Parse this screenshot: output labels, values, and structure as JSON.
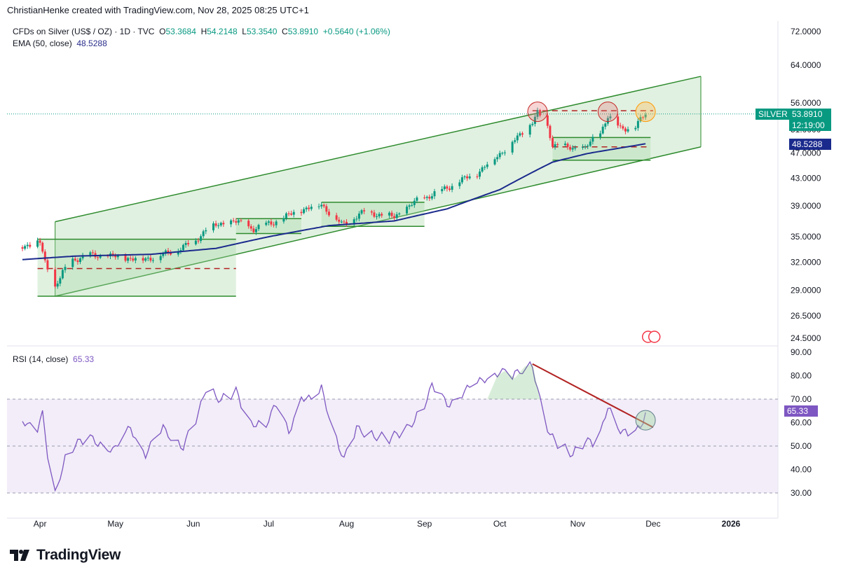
{
  "header": {
    "attribution": "ChristianHenke created with TradingView.com, Nov 28, 2025 08:25 UTC+1"
  },
  "legend": {
    "symbol": "CFDs on Silver (US$ / OZ) · 1D · TVC",
    "open_label": "O",
    "open": "53.3684",
    "high_label": "H",
    "high": "54.2148",
    "low_label": "L",
    "low": "53.3540",
    "close_label": "C",
    "close": "53.8910",
    "change": "+0.5640 (+1.06%)",
    "ema_label": "EMA (50, close)",
    "ema_value": "48.5288",
    "rsi_label": "RSI (14, close)",
    "rsi_value": "65.33"
  },
  "price_tags": {
    "symbol_tag": "SILVER",
    "last_price": "53.8910",
    "countdown": "12:19:00",
    "ema_price": "48.5288",
    "rsi_value": "65.33"
  },
  "colors": {
    "up": "#089981",
    "down": "#f23645",
    "ema": "#1a2a8c",
    "rsi": "#7e57c2",
    "channel": "#2e8b2e",
    "channel_fill": "#c8e6c9",
    "resistance": "#b22222"
  },
  "footer": {
    "brand": "TradingView"
  },
  "chart_data": [
    {
      "type": "candlestick",
      "symbol": "SILVER",
      "y_scale": "log",
      "ylim": [
        24.5,
        72
      ],
      "y_ticks": [
        "72.0000",
        "64.0000",
        "56.0000",
        "51.0000",
        "47.0000",
        "43.0000",
        "39.0000",
        "35.0000",
        "32.0000",
        "29.0000",
        "26.5000",
        "24.5000"
      ],
      "x_ticks": [
        "Apr",
        "May",
        "Jun",
        "Jul",
        "Aug",
        "Sep",
        "Oct",
        "Nov",
        "Dec",
        "2026"
      ],
      "approx_close_path": [
        [
          "2025-03-25",
          33.9
        ],
        [
          "2025-04-01",
          34.3
        ],
        [
          "2025-04-03",
          32.0
        ],
        [
          "2025-04-07",
          29.3
        ],
        [
          "2025-04-10",
          30.8
        ],
        [
          "2025-04-14",
          32.3
        ],
        [
          "2025-04-21",
          32.8
        ],
        [
          "2025-05-01",
          32.6
        ],
        [
          "2025-05-12",
          32.3
        ],
        [
          "2025-05-22",
          33.0
        ],
        [
          "2025-06-02",
          34.5
        ],
        [
          "2025-06-06",
          36.0
        ],
        [
          "2025-06-17",
          37.0
        ],
        [
          "2025-06-25",
          36.0
        ],
        [
          "2025-07-03",
          36.8
        ],
        [
          "2025-07-14",
          38.5
        ],
        [
          "2025-07-22",
          39.2
        ],
        [
          "2025-07-30",
          36.5
        ],
        [
          "2025-08-08",
          38.2
        ],
        [
          "2025-08-20",
          37.5
        ],
        [
          "2025-08-29",
          39.7
        ],
        [
          "2025-09-08",
          41.2
        ],
        [
          "2025-09-15",
          42.5
        ],
        [
          "2025-09-22",
          43.8
        ],
        [
          "2025-09-30",
          46.5
        ],
        [
          "2025-10-08",
          49.5
        ],
        [
          "2025-10-14",
          52.5
        ],
        [
          "2025-10-16",
          54.0
        ],
        [
          "2025-10-20",
          51.5
        ],
        [
          "2025-10-22",
          48.5
        ],
        [
          "2025-10-28",
          47.8
        ],
        [
          "2025-11-04",
          47.8
        ],
        [
          "2025-11-10",
          50.5
        ],
        [
          "2025-11-13",
          53.5
        ],
        [
          "2025-11-18",
          51.2
        ],
        [
          "2025-11-24",
          51.5
        ],
        [
          "2025-11-28",
          53.891
        ]
      ],
      "ema50_path": [
        [
          "2025-03-25",
          32.3
        ],
        [
          "2025-04-15",
          32.7
        ],
        [
          "2025-05-15",
          32.9
        ],
        [
          "2025-06-10",
          33.6
        ],
        [
          "2025-07-01",
          35.0
        ],
        [
          "2025-07-25",
          36.4
        ],
        [
          "2025-08-20",
          37.0
        ],
        [
          "2025-09-10",
          38.6
        ],
        [
          "2025-10-01",
          41.3
        ],
        [
          "2025-10-22",
          45.5
        ],
        [
          "2025-11-05",
          46.9
        ],
        [
          "2025-11-28",
          48.5288
        ]
      ],
      "channel": {
        "upper": [
          [
            "2025-04-07",
            36.9
          ],
          [
            "2025-12-20",
            61.5
          ]
        ],
        "lower": [
          [
            "2025-04-07",
            28.4
          ],
          [
            "2025-12-20",
            48.0
          ]
        ]
      },
      "consolidation_boxes": [
        {
          "from": "2025-03-31",
          "to": "2025-06-18",
          "low": 28.4,
          "high": 34.7,
          "mid_dashed": 31.3
        },
        {
          "from": "2025-06-18",
          "to": "2025-07-14",
          "low": 35.4,
          "high": 37.3
        },
        {
          "from": "2025-07-22",
          "to": "2025-09-01",
          "low": 36.3,
          "high": 39.5
        },
        {
          "from": "2025-10-22",
          "to": "2025-11-30",
          "low": 45.8,
          "high": 49.6,
          "mid_dashed": 48.0
        }
      ],
      "resistance_level": {
        "from": "2025-10-14",
        "to": "2025-12-01",
        "value": 54.5
      },
      "resistance_circles": [
        [
          "2025-10-16",
          54.3
        ],
        [
          "2025-11-13",
          54.3
        ],
        [
          "2025-11-28",
          54.3
        ]
      ]
    },
    {
      "type": "line",
      "name": "RSI (14, close)",
      "ylim": [
        25,
        90
      ],
      "y_ticks": [
        "90.00",
        "80.00",
        "70.00",
        "60.00",
        "50.00",
        "40.00",
        "30.00"
      ],
      "bands": {
        "upper": 70,
        "middle": 50,
        "lower": 30
      },
      "approx_path": [
        [
          "2025-03-25",
          62
        ],
        [
          "2025-03-30",
          55
        ],
        [
          "2025-04-02",
          63
        ],
        [
          "2025-04-04",
          47
        ],
        [
          "2025-04-07",
          29
        ],
        [
          "2025-04-09",
          38
        ],
        [
          "2025-04-12",
          48
        ],
        [
          "2025-04-16",
          51
        ],
        [
          "2025-04-22",
          53
        ],
        [
          "2025-05-01",
          48
        ],
        [
          "2025-05-07",
          58
        ],
        [
          "2025-05-13",
          47
        ],
        [
          "2025-05-20",
          57
        ],
        [
          "2025-05-28",
          50
        ],
        [
          "2025-06-03",
          63
        ],
        [
          "2025-06-06",
          75
        ],
        [
          "2025-06-12",
          70
        ],
        [
          "2025-06-18",
          73
        ],
        [
          "2025-06-23",
          60
        ],
        [
          "2025-06-30",
          60
        ],
        [
          "2025-07-04",
          67
        ],
        [
          "2025-07-09",
          56
        ],
        [
          "2025-07-14",
          72
        ],
        [
          "2025-07-19",
          68
        ],
        [
          "2025-07-22",
          74
        ],
        [
          "2025-07-27",
          57
        ],
        [
          "2025-07-31",
          44
        ],
        [
          "2025-08-05",
          57
        ],
        [
          "2025-08-11",
          55
        ],
        [
          "2025-08-18",
          53
        ],
        [
          "2025-08-25",
          57
        ],
        [
          "2025-09-01",
          68
        ],
        [
          "2025-09-04",
          75
        ],
        [
          "2025-09-10",
          68
        ],
        [
          "2025-09-15",
          72
        ],
        [
          "2025-09-22",
          76
        ],
        [
          "2025-09-26",
          80
        ],
        [
          "2025-10-01",
          82
        ],
        [
          "2025-10-06",
          79
        ],
        [
          "2025-10-11",
          84
        ],
        [
          "2025-10-14",
          85
        ],
        [
          "2025-10-17",
          69
        ],
        [
          "2025-10-21",
          54
        ],
        [
          "2025-10-25",
          50
        ],
        [
          "2025-10-30",
          47
        ],
        [
          "2025-11-04",
          52
        ],
        [
          "2025-11-09",
          50
        ],
        [
          "2025-11-13",
          68
        ],
        [
          "2025-11-18",
          57
        ],
        [
          "2025-11-22",
          53
        ],
        [
          "2025-11-26",
          58
        ],
        [
          "2025-11-28",
          65.33
        ]
      ],
      "trendline": [
        [
          "2025-10-14",
          85
        ],
        [
          "2025-12-01",
          58
        ]
      ],
      "highlight_circle": [
        "2025-11-28",
        61
      ]
    }
  ]
}
